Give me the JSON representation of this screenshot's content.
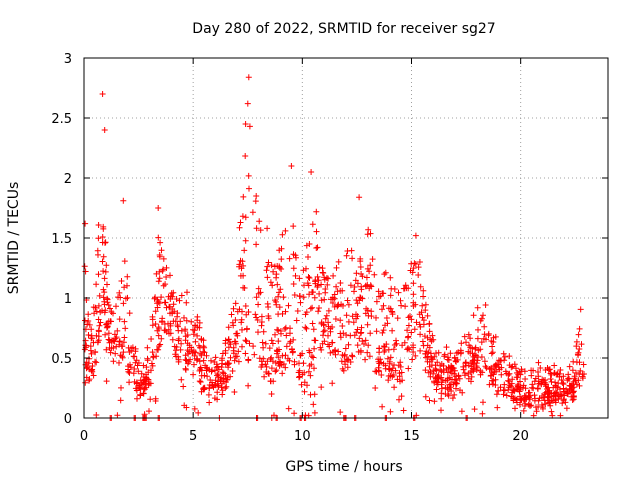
{
  "chart_data": {
    "type": "scatter",
    "title": "Day 280 of 2022, SRMTID for receiver sg27",
    "xlabel": "GPS time / hours",
    "ylabel": "SRMTID / TECUs",
    "xlim": [
      0,
      24
    ],
    "ylim": [
      0,
      3
    ],
    "xticks": [
      0,
      5,
      10,
      15,
      20
    ],
    "yticks": [
      0,
      0.5,
      1,
      1.5,
      2,
      2.5,
      3
    ],
    "xtick_labels": [
      "0",
      "5",
      "10",
      "15",
      "20"
    ],
    "ytick_labels": [
      "0",
      "0.5",
      "1",
      "1.5",
      "2",
      "2.5",
      "3"
    ],
    "grid": true,
    "marker": "+",
    "color": "#ff0000",
    "envelope": [
      [
        0.0,
        0.45,
        1.55
      ],
      [
        0.3,
        0.3,
        0.8
      ],
      [
        0.6,
        0.5,
        1.4
      ],
      [
        0.8,
        0.9,
        2.7
      ],
      [
        1.0,
        0.7,
        1.5
      ],
      [
        1.3,
        0.4,
        0.9
      ],
      [
        1.8,
        0.5,
        1.8
      ],
      [
        2.2,
        0.25,
        0.75
      ],
      [
        2.6,
        0.2,
        0.55
      ],
      [
        3.0,
        0.25,
        0.6
      ],
      [
        3.4,
        0.6,
        1.75
      ],
      [
        4.0,
        0.7,
        1.2
      ],
      [
        4.5,
        0.4,
        1.1
      ],
      [
        5.0,
        0.5,
        1.05
      ],
      [
        5.5,
        0.25,
        0.7
      ],
      [
        6.2,
        0.2,
        0.45
      ],
      [
        6.9,
        0.4,
        1.1
      ],
      [
        7.3,
        0.6,
        2.4
      ],
      [
        7.6,
        0.5,
        2.8
      ],
      [
        8.0,
        0.4,
        1.9
      ],
      [
        8.5,
        0.3,
        1.5
      ],
      [
        9.0,
        0.4,
        1.8
      ],
      [
        9.5,
        0.5,
        1.7
      ],
      [
        10.0,
        0.2,
        1.5
      ],
      [
        10.5,
        0.4,
        2.05
      ],
      [
        11.0,
        0.6,
        1.3
      ],
      [
        11.5,
        0.5,
        1.4
      ],
      [
        12.0,
        0.4,
        1.5
      ],
      [
        12.5,
        0.6,
        1.6
      ],
      [
        13.0,
        0.5,
        1.6
      ],
      [
        13.5,
        0.4,
        1.4
      ],
      [
        14.0,
        0.35,
        1.3
      ],
      [
        14.5,
        0.3,
        1.2
      ],
      [
        15.0,
        0.5,
        1.5
      ],
      [
        15.4,
        0.6,
        1.5
      ],
      [
        15.7,
        0.5,
        1.0
      ],
      [
        16.0,
        0.3,
        0.7
      ],
      [
        16.5,
        0.2,
        0.6
      ],
      [
        17.0,
        0.2,
        0.6
      ],
      [
        17.5,
        0.3,
        0.8
      ],
      [
        18.0,
        0.4,
        0.95
      ],
      [
        18.5,
        0.35,
        1.0
      ],
      [
        19.0,
        0.25,
        0.6
      ],
      [
        19.5,
        0.2,
        0.5
      ],
      [
        20.0,
        0.15,
        0.45
      ],
      [
        20.5,
        0.1,
        0.45
      ],
      [
        21.0,
        0.12,
        0.5
      ],
      [
        21.5,
        0.15,
        0.45
      ],
      [
        22.0,
        0.15,
        0.4
      ],
      [
        22.5,
        0.2,
        0.55
      ],
      [
        22.7,
        0.3,
        1.1
      ],
      [
        22.9,
        0.25,
        0.4
      ]
    ],
    "outliers": [
      {
        "x": 0.85,
        "y": 2.7
      },
      {
        "x": 0.95,
        "y": 2.4
      },
      {
        "x": 7.55,
        "y": 2.84
      },
      {
        "x": 7.5,
        "y": 2.62
      },
      {
        "x": 7.4,
        "y": 2.45
      },
      {
        "x": 9.5,
        "y": 2.1
      },
      {
        "x": 10.4,
        "y": 2.05
      },
      {
        "x": 12.6,
        "y": 1.84
      },
      {
        "x": 3.4,
        "y": 1.75
      },
      {
        "x": 1.8,
        "y": 1.81
      },
      {
        "x": 0.05,
        "y": 1.62
      },
      {
        "x": 15.2,
        "y": 1.52
      }
    ],
    "zero_points_x": [
      1.2,
      2.3,
      2.7,
      2.8,
      3.4,
      6.2,
      7.9,
      8.6,
      8.8,
      9.9,
      10.1,
      11.9,
      12.0,
      12.4,
      13.8,
      15.1,
      17.5
    ]
  }
}
